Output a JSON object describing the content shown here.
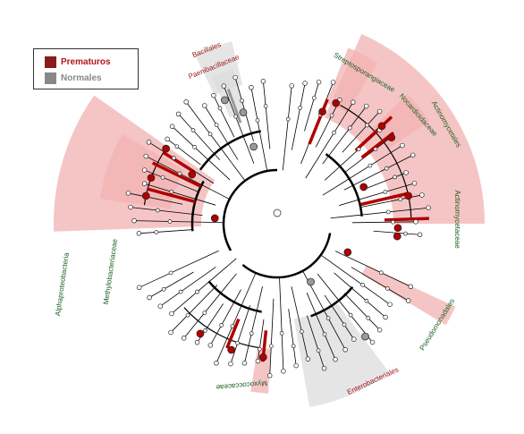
{
  "legend": {
    "items": [
      {
        "label": "Prematuros",
        "color": "#8b1a1a",
        "text_color": "#b01818"
      },
      {
        "label": "Normales",
        "color": "#888888",
        "text_color": "#888888"
      }
    ]
  },
  "colors": {
    "prematuros_node": "#b00000",
    "prematuros_shade": "#f2b1b1",
    "normales_node": "#999999",
    "normales_shade": "#dcdcdc",
    "branch": "#000000",
    "red_label": "#a01818",
    "green_label": "#1b5e20"
  },
  "labels": [
    {
      "text": "Bacillales",
      "color": "red"
    },
    {
      "text": "Paenibacillaceae",
      "color": "red"
    },
    {
      "text": "Streptosporangiaceae",
      "color": "green"
    },
    {
      "text": "Nocardioidaceae",
      "color": "green"
    },
    {
      "text": "Actinomycetales",
      "color": "green"
    },
    {
      "text": "Actinomycetaceae",
      "color": "green"
    },
    {
      "text": "Alphaproteobacteria",
      "color": "green"
    },
    {
      "text": "Methylobacteriaceae",
      "color": "green"
    },
    {
      "text": "Pseudomonadales",
      "color": "green"
    },
    {
      "text": "Myxococcaceae",
      "color": "green"
    },
    {
      "text": "Enterobacteriales",
      "color": "red"
    }
  ]
}
